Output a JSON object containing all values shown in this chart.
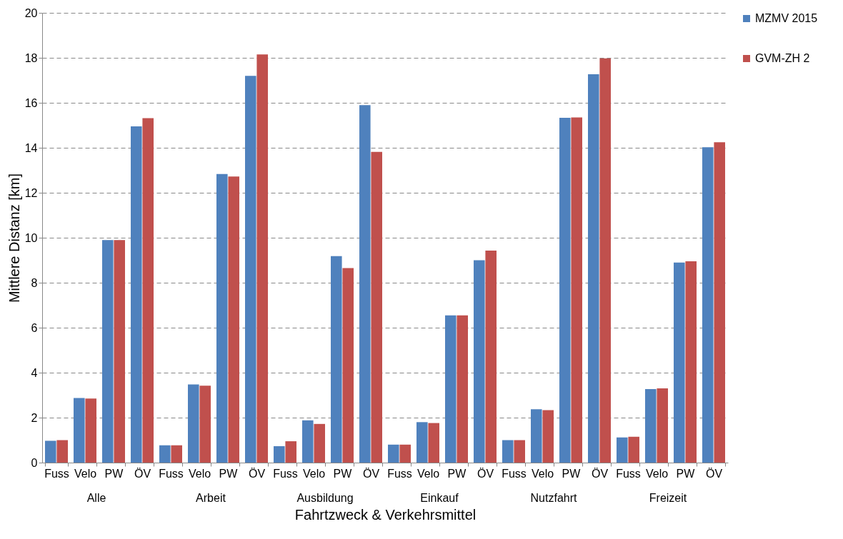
{
  "chart_data": {
    "type": "bar",
    "xlabel": "Fahrtzweck & Verkehrsmittel",
    "ylabel": "Mittlere Distanz [km]",
    "categories": [
      "Fuss",
      "Velo",
      "PW",
      "ÖV",
      "Fuss",
      "Velo",
      "PW",
      "ÖV",
      "Fuss",
      "Velo",
      "PW",
      "ÖV",
      "Fuss",
      "Velo",
      "PW",
      "ÖV",
      "Fuss",
      "Velo",
      "PW",
      "ÖV",
      "Fuss",
      "Velo",
      "PW",
      "ÖV"
    ],
    "annotations": [
      "Alle",
      "Arbeit",
      "Ausbildung",
      "Einkauf",
      "Nutzfahrt",
      "Freizeit"
    ],
    "series": [
      {
        "name": "MZMV 2015",
        "color": "#4f81bd",
        "values": [
          0.97,
          2.87,
          9.9,
          14.95,
          0.77,
          3.48,
          12.83,
          17.2,
          0.73,
          1.88,
          9.18,
          15.9,
          0.8,
          1.8,
          6.55,
          9.0,
          1.0,
          2.37,
          15.33,
          17.27,
          1.12,
          3.27,
          8.9,
          14.02
        ]
      },
      {
        "name": "GVM-ZH 2",
        "color": "#c0504d",
        "values": [
          1.0,
          2.85,
          9.9,
          15.32,
          0.77,
          3.42,
          12.72,
          18.15,
          0.95,
          1.72,
          8.65,
          13.82,
          0.8,
          1.76,
          6.55,
          9.43,
          1.0,
          2.33,
          15.35,
          17.98,
          1.15,
          3.3,
          8.95,
          14.25
        ]
      }
    ],
    "ylim": [
      0,
      20
    ],
    "yticks": [
      0,
      2,
      4,
      6,
      8,
      10,
      12,
      14,
      16,
      18,
      20
    ],
    "grid": "y",
    "legend": "right"
  }
}
